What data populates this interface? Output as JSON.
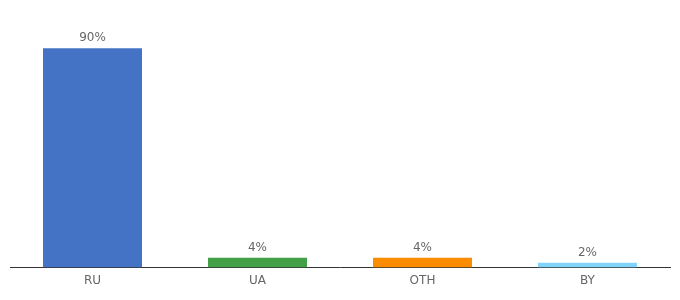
{
  "chart_data": {
    "type": "bar",
    "categories": [
      "RU",
      "UA",
      "OTH",
      "BY"
    ],
    "values": [
      90,
      4,
      4,
      2
    ],
    "value_labels": [
      "90%",
      "4%",
      "4%",
      "2%"
    ],
    "data_labels": true,
    "colors": [
      "#4472c4",
      "#43a047",
      "#fb8c00",
      "#81d4fa"
    ],
    "ylim": [
      0,
      100
    ],
    "grid": false,
    "tick_labels": "x"
  }
}
